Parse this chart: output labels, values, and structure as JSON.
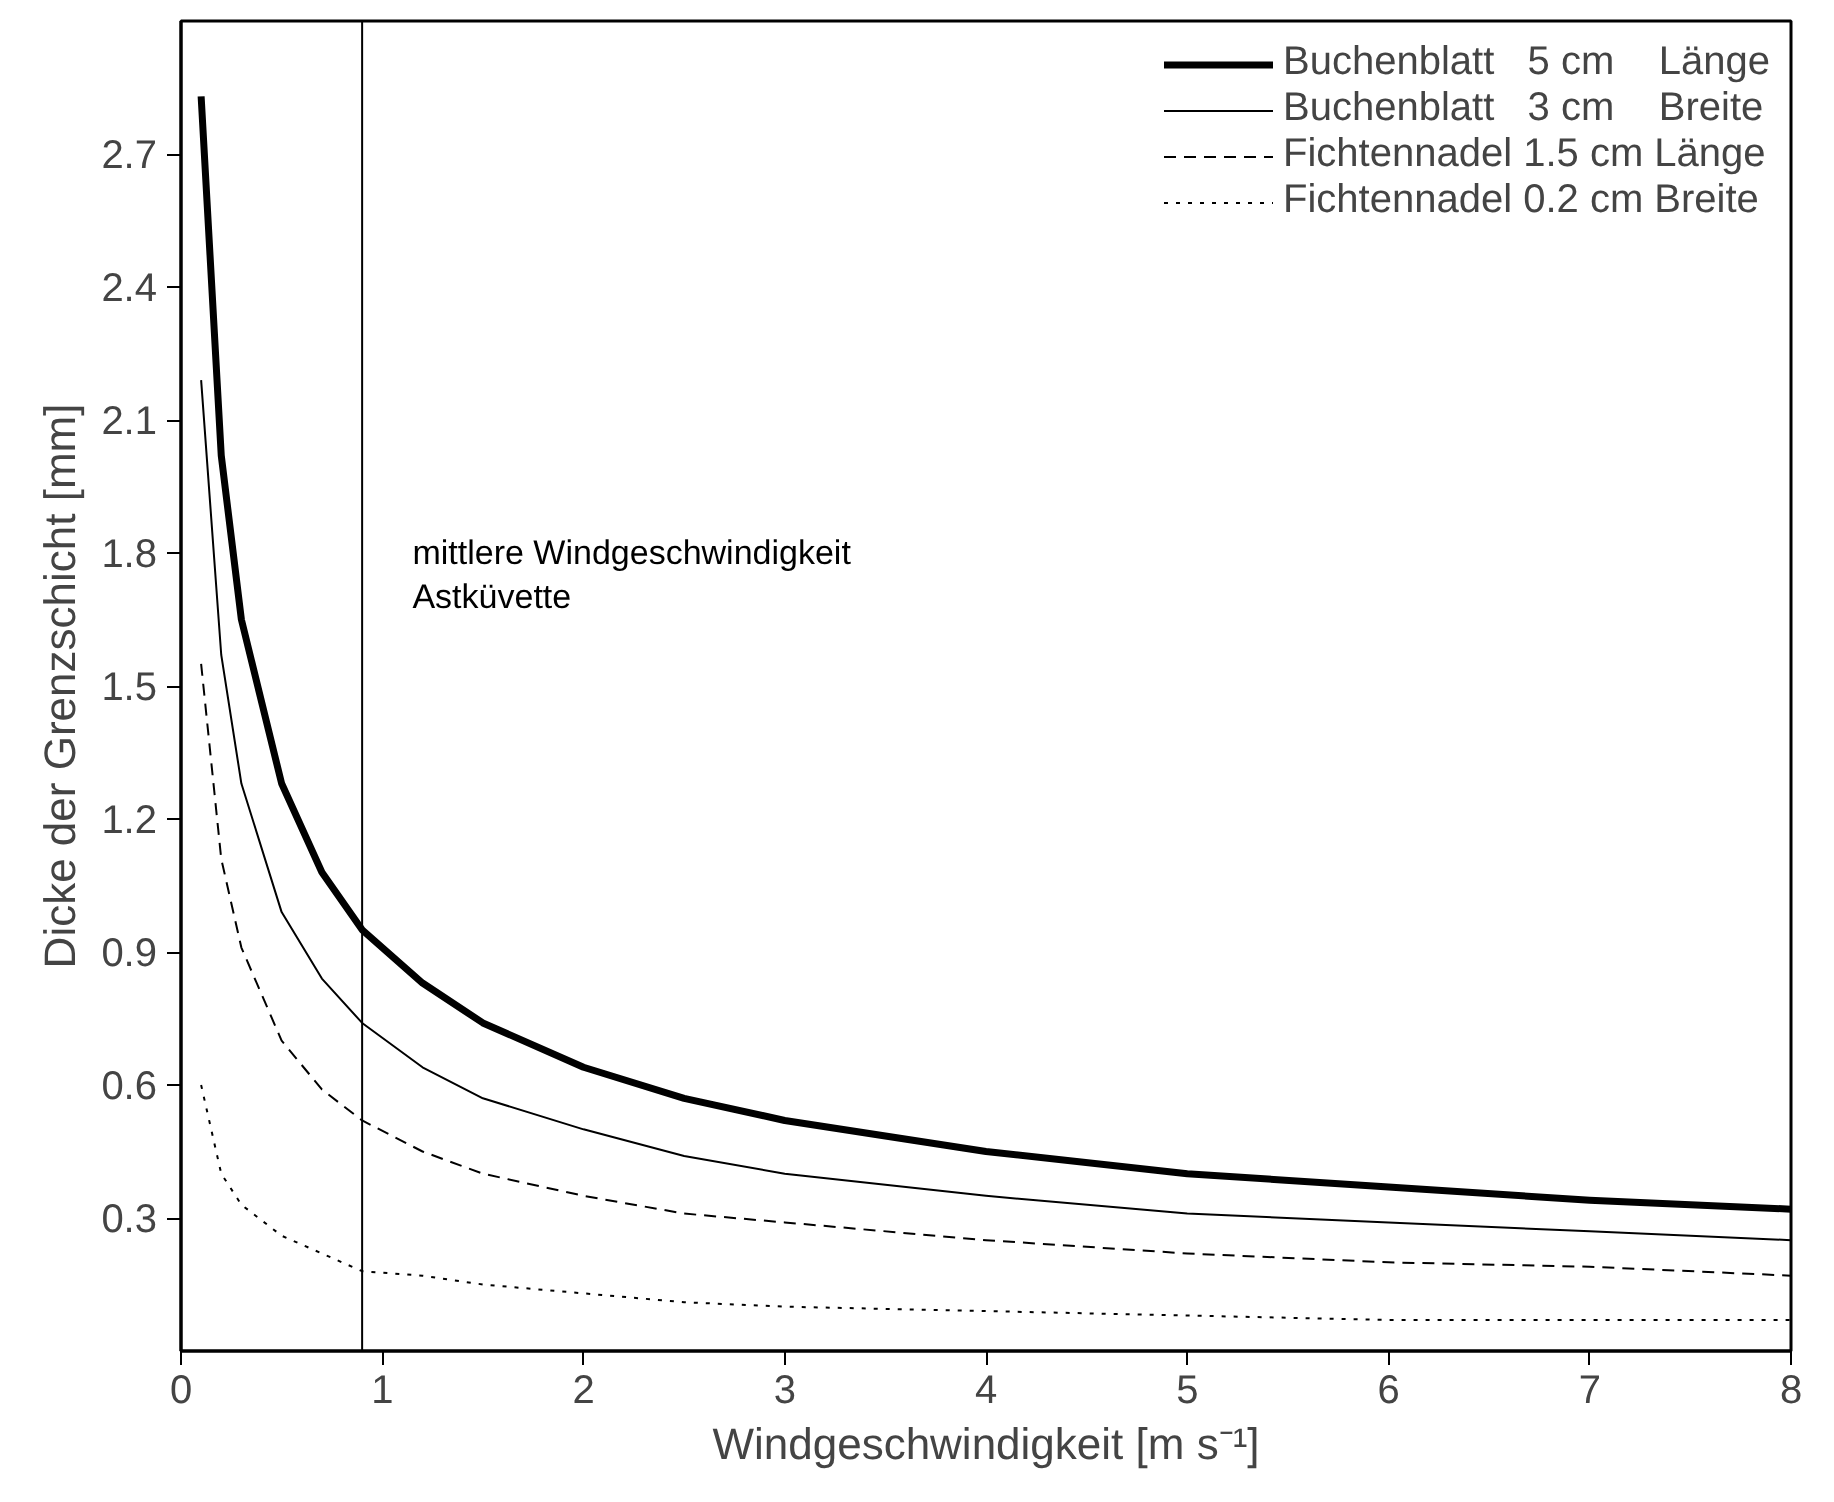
{
  "chart_data": {
    "type": "line",
    "xlabel": "Windgeschwindigkeit [m s⁻¹]",
    "ylabel": "Dicke der Grenzschicht [mm]",
    "x": [
      0.1,
      0.2,
      0.3,
      0.5,
      0.7,
      0.9,
      1.2,
      1.5,
      2,
      2.5,
      3,
      4,
      5,
      6,
      7,
      8
    ],
    "series": [
      {
        "name": "Buchenblatt   5 cm    Länge",
        "color": "#000000",
        "line_style": "solid",
        "values": [
          2.83,
          2.02,
          1.65,
          1.28,
          1.08,
          0.95,
          0.83,
          0.74,
          0.64,
          0.57,
          0.52,
          0.45,
          0.4,
          0.37,
          0.34,
          0.32
        ]
      },
      {
        "name": "Buchenblatt   3 cm    Breite",
        "color": "#000000",
        "line_style": "solid",
        "values": [
          2.19,
          1.57,
          1.28,
          0.99,
          0.84,
          0.74,
          0.64,
          0.57,
          0.5,
          0.44,
          0.4,
          0.35,
          0.31,
          0.29,
          0.27,
          0.25
        ]
      },
      {
        "name": "Fichtennadel 1.5 cm Länge",
        "color": "#000000",
        "line_style": "dashed",
        "values": [
          1.55,
          1.11,
          0.91,
          0.7,
          0.59,
          0.52,
          0.45,
          0.4,
          0.35,
          0.31,
          0.29,
          0.25,
          0.22,
          0.2,
          0.19,
          0.17
        ]
      },
      {
        "name": "Fichtennadel 0.2 cm Breite",
        "color": "#000000",
        "line_style": "dotted",
        "values": [
          0.6,
          0.4,
          0.33,
          0.26,
          0.22,
          0.18,
          0.17,
          0.15,
          0.13,
          0.11,
          0.1,
          0.09,
          0.08,
          0.07,
          0.07,
          0.07
        ]
      }
    ],
    "xlim": [
      0,
      8
    ],
    "ylim": [
      0,
      3.0
    ],
    "xticks": [
      0,
      1,
      2,
      3,
      4,
      5,
      6,
      7,
      8
    ],
    "yticks": [
      0.3,
      0.6,
      0.9,
      1.2,
      1.5,
      1.8,
      2.1,
      2.4,
      2.7
    ],
    "ref_lines": [
      {
        "axis": "x",
        "value": 0.9,
        "label": "mittlere Windgeschwindigkeit\nAstküvette",
        "color": "#000000"
      }
    ],
    "legend": "top right",
    "grid": false,
    "marker": "none"
  }
}
